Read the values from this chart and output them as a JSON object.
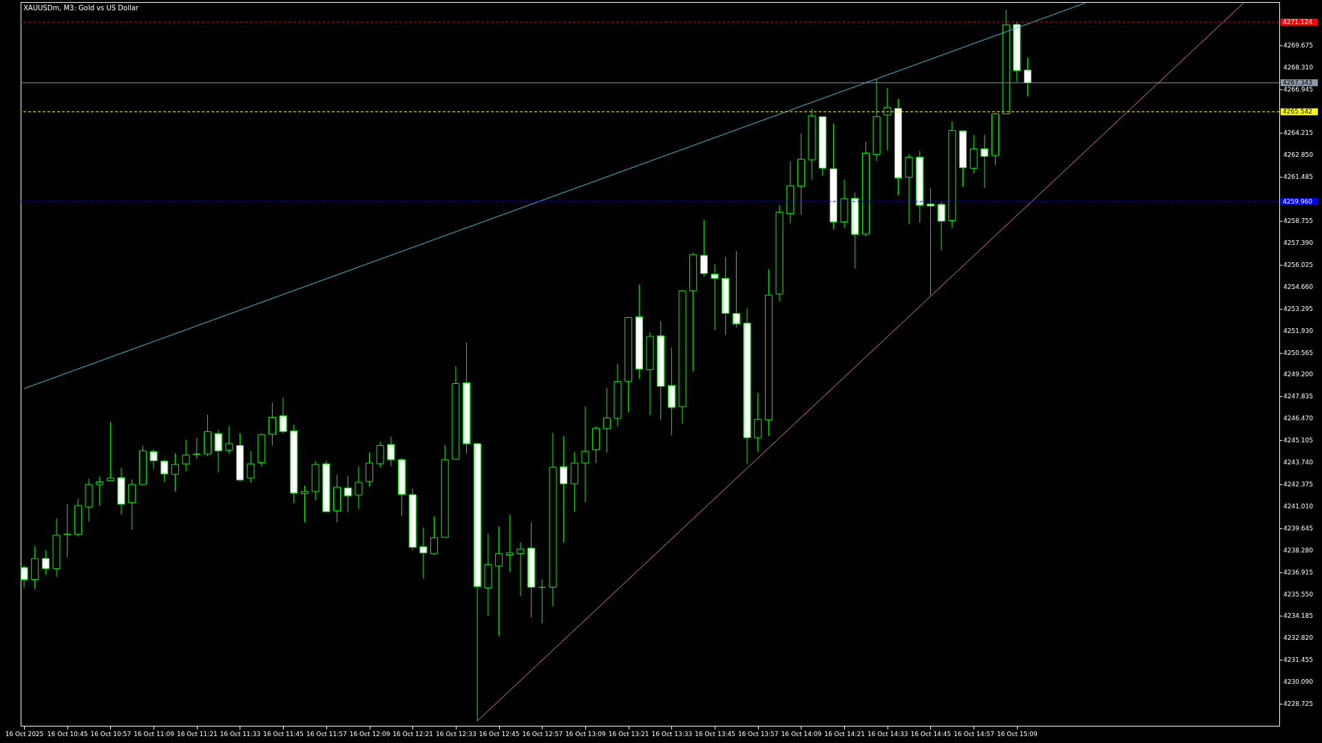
{
  "chart_data": {
    "type": "candlestick",
    "title": "XAUUSDm, M3:  Gold vs US Dollar",
    "x": [
      "2025-10-16T10:33",
      "2025-10-16T10:36",
      "2025-10-16T10:39",
      "2025-10-16T10:42",
      "2025-10-16T10:45",
      "2025-10-16T10:48",
      "2025-10-16T10:51",
      "2025-10-16T10:54",
      "2025-10-16T10:57",
      "2025-10-16T11:00",
      "2025-10-16T11:03",
      "2025-10-16T11:06",
      "2025-10-16T11:09",
      "2025-10-16T11:12",
      "2025-10-16T11:15",
      "2025-10-16T11:18",
      "2025-10-16T11:21",
      "2025-10-16T11:24",
      "2025-10-16T11:27",
      "2025-10-16T11:30",
      "2025-10-16T11:33",
      "2025-10-16T11:36",
      "2025-10-16T11:39",
      "2025-10-16T11:42",
      "2025-10-16T11:45",
      "2025-10-16T11:48",
      "2025-10-16T11:51",
      "2025-10-16T11:54",
      "2025-10-16T11:57",
      "2025-10-16T12:00",
      "2025-10-16T12:03",
      "2025-10-16T12:06",
      "2025-10-16T12:09",
      "2025-10-16T12:12",
      "2025-10-16T12:15",
      "2025-10-16T12:18",
      "2025-10-16T12:21",
      "2025-10-16T12:24",
      "2025-10-16T12:27",
      "2025-10-16T12:30",
      "2025-10-16T12:33",
      "2025-10-16T12:36",
      "2025-10-16T12:39",
      "2025-10-16T12:42",
      "2025-10-16T12:45",
      "2025-10-16T12:48",
      "2025-10-16T12:51",
      "2025-10-16T12:54",
      "2025-10-16T12:57",
      "2025-10-16T13:00",
      "2025-10-16T13:03",
      "2025-10-16T13:06",
      "2025-10-16T13:09",
      "2025-10-16T13:12",
      "2025-10-16T13:15",
      "2025-10-16T13:18",
      "2025-10-16T13:21",
      "2025-10-16T13:24",
      "2025-10-16T13:27",
      "2025-10-16T13:30",
      "2025-10-16T13:33",
      "2025-10-16T13:36",
      "2025-10-16T13:39",
      "2025-10-16T13:42",
      "2025-10-16T13:45",
      "2025-10-16T13:48",
      "2025-10-16T13:51",
      "2025-10-16T13:54",
      "2025-10-16T13:57",
      "2025-10-16T14:00",
      "2025-10-16T14:03",
      "2025-10-16T14:06",
      "2025-10-16T14:09",
      "2025-10-16T14:12",
      "2025-10-16T14:15",
      "2025-10-16T14:18",
      "2025-10-16T14:21",
      "2025-10-16T14:24",
      "2025-10-16T14:27",
      "2025-10-16T14:30",
      "2025-10-16T14:33",
      "2025-10-16T14:36",
      "2025-10-16T14:39",
      "2025-10-16T14:42",
      "2025-10-16T14:45",
      "2025-10-16T14:48",
      "2025-10-16T14:51",
      "2025-10-16T14:54",
      "2025-10-16T14:57",
      "2025-10-16T15:00",
      "2025-10-16T15:03",
      "2025-10-16T15:06",
      "2025-10-16T15:09",
      "2025-10-16T15:12"
    ],
    "ohlc": [
      [
        4237.2,
        4237.33,
        4235.98,
        4236.45
      ],
      [
        4236.45,
        4238.54,
        4235.88,
        4237.76
      ],
      [
        4237.76,
        4238.28,
        4236.77,
        4237.14
      ],
      [
        4237.14,
        4240.25,
        4236.63,
        4239.21
      ],
      [
        4239.26,
        4241.14,
        4237.85,
        4239.27
      ],
      [
        4239.26,
        4241.49,
        4239.12,
        4241.05
      ],
      [
        4240.96,
        4242.72,
        4240.06,
        4242.37
      ],
      [
        4242.37,
        4242.86,
        4241.07,
        4242.53
      ],
      [
        4242.6,
        4246.26,
        4242.6,
        4242.76
      ],
      [
        4242.79,
        4243.4,
        4240.49,
        4241.14
      ],
      [
        4241.23,
        4242.69,
        4239.55,
        4242.37
      ],
      [
        4242.37,
        4244.78,
        4242.37,
        4244.46
      ],
      [
        4244.41,
        4244.55,
        4243.33,
        4243.84
      ],
      [
        4243.82,
        4243.91,
        4242.53,
        4243.02
      ],
      [
        4243.0,
        4244.31,
        4241.94,
        4243.61
      ],
      [
        4243.65,
        4245.16,
        4243.21,
        4244.2
      ],
      [
        4244.24,
        4245.25,
        4243.94,
        4244.26
      ],
      [
        4244.26,
        4246.69,
        4244.12,
        4245.65
      ],
      [
        4245.53,
        4245.75,
        4243.12,
        4244.46
      ],
      [
        4244.5,
        4245.99,
        4244.29,
        4244.9
      ],
      [
        4244.79,
        4245.54,
        4242.6,
        4242.64
      ],
      [
        4242.76,
        4244.43,
        4242.46,
        4243.65
      ],
      [
        4243.72,
        4245.54,
        4243.47,
        4245.46
      ],
      [
        4245.49,
        4247.46,
        4244.79,
        4246.54
      ],
      [
        4246.64,
        4247.77,
        4245.53,
        4245.66
      ],
      [
        4245.7,
        4246.08,
        4241.21,
        4241.83
      ],
      [
        4241.8,
        4242.3,
        4240.02,
        4241.94
      ],
      [
        4241.94,
        4243.84,
        4241.38,
        4243.61
      ],
      [
        4243.65,
        4243.84,
        4240.67,
        4240.67
      ],
      [
        4240.72,
        4242.97,
        4240.02,
        4242.2
      ],
      [
        4242.15,
        4242.9,
        4240.65,
        4241.66
      ],
      [
        4241.7,
        4243.49,
        4240.88,
        4242.5
      ],
      [
        4242.55,
        4244.34,
        4242.24,
        4243.7
      ],
      [
        4243.66,
        4245.02,
        4243.42,
        4244.79
      ],
      [
        4244.85,
        4245.33,
        4243.51,
        4243.91
      ],
      [
        4243.91,
        4244.01,
        4240.41,
        4241.75
      ],
      [
        4241.73,
        4242.11,
        4238.28,
        4238.46
      ],
      [
        4238.49,
        4239.69,
        4236.52,
        4238.11
      ],
      [
        4238.06,
        4240.39,
        4237.99,
        4239.05
      ],
      [
        4239.08,
        4244.81,
        4239.08,
        4243.91
      ],
      [
        4243.94,
        4249.7,
        4243.94,
        4248.64
      ],
      [
        4248.68,
        4251.18,
        4244.29,
        4244.9
      ],
      [
        4244.9,
        4244.95,
        4227.66,
        4236.02
      ],
      [
        4235.93,
        4239.31,
        4234.19,
        4237.38
      ],
      [
        4237.29,
        4239.76,
        4232.94,
        4238.06
      ],
      [
        4237.99,
        4240.49,
        4236.94,
        4238.11
      ],
      [
        4238.07,
        4238.75,
        4235.41,
        4238.35
      ],
      [
        4238.4,
        4240.02,
        4234.09,
        4235.98
      ],
      [
        4235.97,
        4236.46,
        4233.74,
        4235.98
      ],
      [
        4235.98,
        4245.58,
        4234.77,
        4243.44
      ],
      [
        4243.47,
        4245.37,
        4238.77,
        4242.41
      ],
      [
        4242.41,
        4244.39,
        4240.67,
        4243.7
      ],
      [
        4243.7,
        4247.21,
        4241.26,
        4244.43
      ],
      [
        4244.52,
        4245.98,
        4243.68,
        4245.87
      ],
      [
        4245.84,
        4248.35,
        4244.34,
        4246.5
      ],
      [
        4246.48,
        4249.87,
        4245.98,
        4248.76
      ],
      [
        4248.78,
        4252.75,
        4246.85,
        4252.75
      ],
      [
        4252.79,
        4254.78,
        4248.94,
        4249.55
      ],
      [
        4249.5,
        4251.83,
        4246.69,
        4251.57
      ],
      [
        4251.61,
        4252.53,
        4246.38,
        4248.47
      ],
      [
        4248.52,
        4250.88,
        4245.42,
        4247.16
      ],
      [
        4247.2,
        4254.45,
        4246.15,
        4254.4
      ],
      [
        4254.4,
        4256.78,
        4249.4,
        4256.66
      ],
      [
        4256.61,
        4258.83,
        4255.3,
        4255.48
      ],
      [
        4255.44,
        4256.05,
        4251.97,
        4255.18
      ],
      [
        4255.17,
        4256.52,
        4251.66,
        4253.01
      ],
      [
        4252.99,
        4256.87,
        4252.12,
        4252.35
      ],
      [
        4252.39,
        4253.34,
        4243.63,
        4245.28
      ],
      [
        4245.28,
        4248.07,
        4244.38,
        4246.41
      ],
      [
        4246.38,
        4255.77,
        4245.39,
        4254.14
      ],
      [
        4254.21,
        4259.76,
        4253.74,
        4259.3
      ],
      [
        4259.21,
        4262.47,
        4258.6,
        4260.94
      ],
      [
        4260.91,
        4264.19,
        4259.12,
        4262.59
      ],
      [
        4262.56,
        4265.72,
        4261.33,
        4265.29
      ],
      [
        4265.23,
        4265.25,
        4261.57,
        4262.04
      ],
      [
        4262.0,
        4264.82,
        4258.25,
        4258.69
      ],
      [
        4258.69,
        4261.33,
        4258.34,
        4260.13
      ],
      [
        4260.16,
        4260.51,
        4255.79,
        4257.91
      ],
      [
        4257.94,
        4263.67,
        4257.79,
        4262.97
      ],
      [
        4262.89,
        4267.57,
        4262.47,
        4265.23
      ],
      [
        4265.34,
        4267.02,
        4263.15,
        4265.81
      ],
      [
        4265.75,
        4266.33,
        4260.34,
        4261.43
      ],
      [
        4261.47,
        4262.91,
        4258.57,
        4262.72
      ],
      [
        4262.72,
        4263.11,
        4258.65,
        4259.73
      ],
      [
        4259.8,
        4260.77,
        4254.14,
        4259.68
      ],
      [
        4259.78,
        4259.92,
        4256.92,
        4258.74
      ],
      [
        4258.78,
        4264.94,
        4258.34,
        4264.38
      ],
      [
        4264.35,
        4264.38,
        4260.89,
        4262.06
      ],
      [
        4262.02,
        4264.1,
        4261.71,
        4263.24
      ],
      [
        4263.24,
        4264.1,
        4260.82,
        4262.77
      ],
      [
        4262.82,
        4265.46,
        4262.21,
        4265.41
      ],
      [
        4265.41,
        4271.88,
        4265.41,
        4270.95
      ],
      [
        4270.96,
        4271.1,
        4267.4,
        4268.1
      ],
      [
        4268.13,
        4268.91,
        4266.5,
        4267.34
      ]
    ],
    "color": "#00ff00",
    "colors": [
      "#ffffff",
      "#000000",
      "#ffffff",
      "#000000",
      "#000000",
      "#000000",
      "#000000",
      "#000000",
      "#000000",
      "#ffffff",
      "#000000",
      "#000000",
      "#ffffff",
      "#ffffff",
      "#000000",
      "#000000",
      "#000000",
      "#000000",
      "#ffffff",
      "#000000",
      "#ffffff",
      "#000000",
      "#000000",
      "#000000",
      "#ffffff",
      "#ffffff",
      "#000000",
      "#000000",
      "#ffffff",
      "#000000",
      "#ffffff",
      "#000000",
      "#000000",
      "#000000",
      "#ffffff",
      "#ffffff",
      "#ffffff",
      "#ffffff",
      "#000000",
      "#000000",
      "#000000",
      "#ffffff",
      "#ffffff",
      "#000000",
      "#000000",
      "#000000",
      "#000000",
      "#ffffff",
      "#000000",
      "#000000",
      "#ffffff",
      "#000000",
      "#000000",
      "#000000",
      "#000000",
      "#000000",
      "#000000",
      "#ffffff",
      "#000000",
      "#ffffff",
      "#ffffff",
      "#000000",
      "#000000",
      "#ffffff",
      "#ffffff",
      "#ffffff",
      "#ffffff",
      "#ffffff",
      "#000000",
      "#000000",
      "#000000",
      "#000000",
      "#000000",
      "#000000",
      "#ffffff",
      "#ffffff",
      "#000000",
      "#ffffff",
      "#000000",
      "#000000",
      "#000000",
      "#ffffff",
      "#000000",
      "#ffffff",
      "#ffffff",
      "#ffffff",
      "#000000",
      "#ffffff",
      "#000000",
      "#ffffff",
      "#000000",
      "#000000",
      "#ffffff",
      "#ffffff"
    ],
    "series": [
      {
        "type": "line",
        "color": "#45c4e6",
        "x": [
          "2025-10-16T10:33",
          "2025-10-16T15:28"
        ],
        "values": [
          4248.33,
          4272.3
        ]
      },
      {
        "type": "line",
        "color": "#e377b5",
        "x": [
          "2025-10-16T12:39",
          "2025-10-16T16:12"
        ],
        "values": [
          4227.66,
          4272.3
        ]
      }
    ],
    "ref_lines": [
      {
        "axis": "y",
        "value": 4271.124,
        "label": "4271.124",
        "color": "#ff0000",
        "line_style": "dashed"
      },
      {
        "axis": "y",
        "value": 4267.343,
        "label": "4267.343",
        "color": "#8c9aa8",
        "line_style": "solid"
      },
      {
        "axis": "y",
        "value": 4265.542,
        "label": "4265.542",
        "color": "#ffff00",
        "line_style": "dashed"
      },
      {
        "axis": "y",
        "value": 4259.96,
        "label": "4259.960",
        "color": "#0000ff",
        "line_style": "dashed"
      }
    ],
    "xlim": [
      "2025-10-16T10:33",
      "2025-10-16T16:21"
    ],
    "xticks": [
      {
        "value": "2025-10-16T10:33",
        "label": "16 Oct 2025"
      },
      {
        "value": "2025-10-16T10:45",
        "label": "16 Oct 10:45"
      },
      {
        "value": "2025-10-16T10:57",
        "label": "16 Oct 10:57"
      },
      {
        "value": "2025-10-16T11:09",
        "label": "16 Oct 11:09"
      },
      {
        "value": "2025-10-16T11:21",
        "label": "16 Oct 11:21"
      },
      {
        "value": "2025-10-16T11:33",
        "label": "16 Oct 11:33"
      },
      {
        "value": "2025-10-16T11:45",
        "label": "16 Oct 11:45"
      },
      {
        "value": "2025-10-16T11:57",
        "label": "16 Oct 11:57"
      },
      {
        "value": "2025-10-16T12:09",
        "label": "16 Oct 12:09"
      },
      {
        "value": "2025-10-16T12:21",
        "label": "16 Oct 12:21"
      },
      {
        "value": "2025-10-16T12:33",
        "label": "16 Oct 12:33"
      },
      {
        "value": "2025-10-16T12:45",
        "label": "16 Oct 12:45"
      },
      {
        "value": "2025-10-16T12:57",
        "label": "16 Oct 12:57"
      },
      {
        "value": "2025-10-16T13:09",
        "label": "16 Oct 13:09"
      },
      {
        "value": "2025-10-16T13:21",
        "label": "16 Oct 13:21"
      },
      {
        "value": "2025-10-16T13:33",
        "label": "16 Oct 13:33"
      },
      {
        "value": "2025-10-16T13:45",
        "label": "16 Oct 13:45"
      },
      {
        "value": "2025-10-16T13:57",
        "label": "16 Oct 13:57"
      },
      {
        "value": "2025-10-16T14:09",
        "label": "16 Oct 14:09"
      },
      {
        "value": "2025-10-16T14:21",
        "label": "16 Oct 14:21"
      },
      {
        "value": "2025-10-16T14:33",
        "label": "16 Oct 14:33"
      },
      {
        "value": "2025-10-16T14:45",
        "label": "16 Oct 14:45"
      },
      {
        "value": "2025-10-16T14:57",
        "label": "16 Oct 14:57"
      },
      {
        "value": "2025-10-16T15:09",
        "label": "16 Oct 15:09"
      }
    ],
    "ylim": [
      4227.36,
      4272.36
    ],
    "yticks": [
      4228.725,
      {
        "value": 4230.09,
        "label": "4230.090"
      },
      4231.455,
      {
        "value": 4232.82,
        "label": "4232.820"
      },
      4234.185,
      {
        "value": 4235.55,
        "label": "4235.550"
      },
      4236.915,
      {
        "value": 4238.28,
        "label": "4238.280"
      },
      4239.645,
      {
        "value": 4241.01,
        "label": "4241.010"
      },
      4242.375,
      {
        "value": 4243.74,
        "label": "4243.740"
      },
      4245.105,
      {
        "value": 4246.47,
        "label": "4246.470"
      },
      4247.835,
      {
        "value": 4249.2,
        "label": "4249.200"
      },
      4250.565,
      {
        "value": 4251.93,
        "label": "4251.930"
      },
      4253.295,
      {
        "value": 4254.66,
        "label": "4254.660"
      },
      4256.025,
      {
        "value": 4257.39,
        "label": "4257.390"
      },
      4258.755,
      {
        "value": 4260.12,
        "label": null
      },
      4261.485,
      {
        "value": 4262.85,
        "label": "4262.850"
      },
      4264.215,
      {
        "value": 4265.58,
        "label": null
      },
      4266.945,
      {
        "value": 4268.31,
        "label": "4268.310"
      },
      4269.675
    ]
  }
}
